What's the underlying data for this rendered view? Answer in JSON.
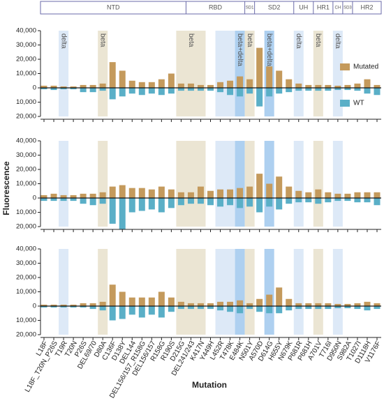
{
  "x_label": "Mutation",
  "y_label": "Fluorescence",
  "categories": [
    "L18F",
    "L18F_T20N_P26S",
    "T19R",
    "T20N",
    "P26S",
    "DEL69/70",
    "D80A",
    "C136F",
    "D138Y",
    "DEL144",
    "DEL156/157_R158G",
    "DEL156/157",
    "R158G",
    "R190S",
    "D215G",
    "DEL241/243",
    "K417N",
    "Y449H",
    "L452R",
    "T478K",
    "E484K",
    "N501Y",
    "A570D",
    "D614G",
    "H655Y",
    "N679K",
    "P681R",
    "P681H",
    "A701V",
    "T716I",
    "D950N",
    "S982A",
    "T1027I",
    "D1118H",
    "V1176F"
  ],
  "domains": [
    {
      "name": "NTD",
      "from": "L18F",
      "to": "D215G"
    },
    {
      "name": "RBD",
      "from": "DEL241/243",
      "to": "E484K"
    },
    {
      "name": "SD1",
      "from": "N501Y",
      "to": "N501Y"
    },
    {
      "name": "SD2",
      "from": "A570D",
      "to": "N679K"
    },
    {
      "name": "UH",
      "from": "P681R",
      "to": "P681H"
    },
    {
      "name": "HR1",
      "from": "A701V",
      "to": "T716I"
    },
    {
      "name": "CH",
      "from": "D950N",
      "to": "D950N"
    },
    {
      "name": "SD3",
      "from": "S982A",
      "to": "S982A"
    },
    {
      "name": "HR2",
      "from": "T1027I",
      "to": "V1176F"
    }
  ],
  "bands": [
    {
      "label": "delta",
      "from": "T19R",
      "to": "T19R",
      "color": "#dde9f7"
    },
    {
      "label": "beta",
      "from": "D80A",
      "to": "D80A",
      "color": "#ebe5d3"
    },
    {
      "label": "beta",
      "from": "D215G",
      "to": "K417N",
      "color": "#ebe5d3"
    },
    {
      "label": null,
      "from": "L452R",
      "to": "T478K",
      "color": "#dde9f7"
    },
    {
      "label": "beta+delta",
      "from": "E484K",
      "to": "E484K",
      "color": "#aed0f0"
    },
    {
      "label": "beta",
      "from": "N501Y",
      "to": "N501Y",
      "color": "#ebe5d3"
    },
    {
      "label": "beta+delta",
      "from": "D614G",
      "to": "D614G",
      "color": "#aed0f0"
    },
    {
      "label": "delta",
      "from": "P681R",
      "to": "P681R",
      "color": "#dde9f7"
    },
    {
      "label": "beta",
      "from": "A701V",
      "to": "A701V",
      "color": "#ebe5d3"
    },
    {
      "label": "delta",
      "from": "D950N",
      "to": "D950N",
      "color": "#dde9f7"
    }
  ],
  "chart_data": [
    {
      "type": "bar",
      "legend": "right",
      "ylim": [
        -20000,
        40000
      ],
      "yticks": [
        {
          "value": -20000,
          "label": "20,000"
        },
        {
          "value": -10000,
          "label": "10,000"
        },
        0,
        {
          "value": 10000,
          "label": "10,000"
        },
        {
          "value": 20000,
          "label": "20,000"
        },
        {
          "value": 30000,
          "label": "30,000"
        },
        {
          "value": 40000,
          "label": "40,000"
        }
      ],
      "series": [
        {
          "name": "Mutated",
          "color": "#c49a5c",
          "values": [
            1500,
            1500,
            1000,
            1000,
            2000,
            2000,
            3000,
            18000,
            12000,
            5000,
            4000,
            4000,
            6000,
            10000,
            3000,
            3000,
            2000,
            2000,
            4000,
            5000,
            8000,
            6000,
            28000,
            15000,
            12000,
            6000,
            3000,
            2000,
            2000,
            2000,
            1500,
            2000,
            3000,
            6000,
            2000
          ]
        },
        {
          "name": "WT",
          "color": "#5aafc7",
          "values": [
            -1000,
            -1500,
            -1000,
            -1000,
            -3000,
            -3000,
            -2000,
            -8000,
            -6000,
            -4000,
            -5000,
            -4000,
            -5000,
            -4000,
            -2000,
            -2000,
            -2000,
            -2000,
            -3000,
            -5000,
            -6000,
            -4000,
            -13000,
            -6000,
            -4000,
            -3000,
            -2000,
            -2000,
            -2000,
            -2000,
            -1500,
            -1500,
            -2000,
            -4000,
            -5000
          ]
        }
      ]
    },
    {
      "type": "bar",
      "ylim": [
        -20000,
        40000
      ],
      "yticks": [
        {
          "value": -20000,
          "label": "20,000"
        },
        {
          "value": -10000,
          "label": "10,000"
        },
        0,
        {
          "value": 10000,
          "label": "10,000"
        },
        {
          "value": 20000,
          "label": "20,000"
        },
        {
          "value": 30000,
          "label": "30,000"
        },
        {
          "value": 40000,
          "label": "40,000"
        }
      ],
      "series": [
        {
          "color": "#c49a5c",
          "values": [
            2000,
            3000,
            2000,
            2000,
            3000,
            3000,
            4000,
            8000,
            9000,
            7000,
            7000,
            6000,
            8000,
            6000,
            4000,
            4000,
            8000,
            5000,
            6000,
            6000,
            7000,
            8000,
            17000,
            10000,
            15000,
            8000,
            5000,
            4000,
            6000,
            4000,
            3000,
            3000,
            4000,
            4000,
            4000
          ]
        },
        {
          "color": "#5aafc7",
          "values": [
            -2000,
            -2000,
            -2000,
            -2000,
            -4000,
            -5000,
            -4000,
            -18000,
            -22000,
            -10000,
            -9000,
            -8000,
            -10000,
            -7000,
            -5000,
            -4000,
            -4000,
            -5000,
            -6000,
            -5000,
            -7000,
            -6000,
            -10000,
            -6000,
            -8000,
            -4000,
            -3000,
            -3000,
            -4000,
            -3000,
            -2000,
            -2000,
            -3000,
            -3000,
            -5000
          ]
        }
      ]
    },
    {
      "type": "bar",
      "ylim": [
        -20000,
        40000
      ],
      "yticks": [
        {
          "value": -20000,
          "label": "20,000"
        },
        {
          "value": -10000,
          "label": "10,000"
        },
        0,
        {
          "value": 10000,
          "label": "10,000"
        },
        {
          "value": 20000,
          "label": "20,000"
        },
        {
          "value": 30000,
          "label": "30,000"
        },
        {
          "value": 40000,
          "label": "40,000"
        }
      ],
      "series": [
        {
          "color": "#c49a5c",
          "values": [
            1000,
            1000,
            1000,
            1000,
            2000,
            2000,
            3000,
            15000,
            10000,
            6000,
            6000,
            6000,
            10000,
            6000,
            3000,
            2000,
            2000,
            2000,
            3000,
            3000,
            4000,
            2000,
            5000,
            8000,
            13000,
            5000,
            2000,
            2000,
            2000,
            2000,
            1500,
            1500,
            2000,
            3000,
            2000
          ]
        },
        {
          "color": "#5aafc7",
          "values": [
            -1000,
            -1000,
            -1000,
            -1000,
            -1000,
            -2000,
            -3000,
            -10000,
            -9000,
            -6000,
            -8000,
            -6000,
            -8000,
            -4000,
            -2000,
            -2000,
            -2000,
            -2000,
            -3000,
            -4000,
            -5000,
            -2000,
            -4000,
            -5000,
            -5000,
            -3000,
            -2000,
            -2000,
            -2000,
            -2000,
            -1500,
            -1500,
            -2000,
            -3000,
            -2000
          ]
        }
      ]
    }
  ]
}
